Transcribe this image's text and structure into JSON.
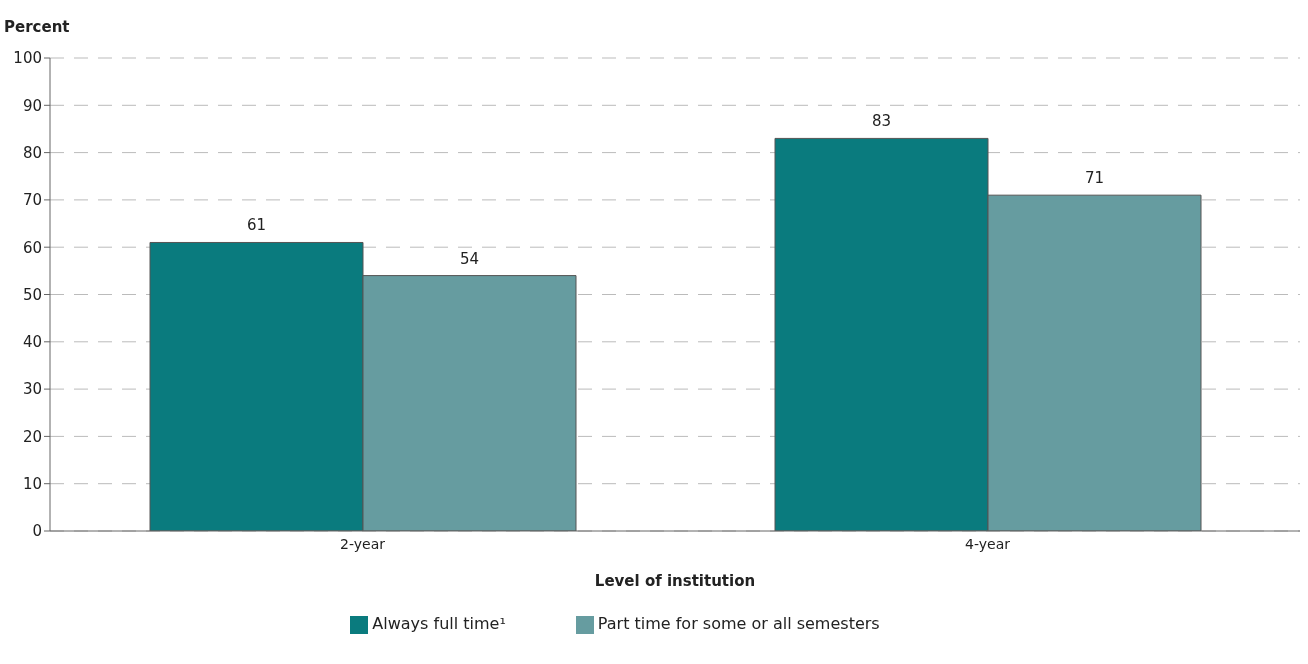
{
  "chart_data": {
    "type": "bar",
    "ylabel": "Percent",
    "xlabel": "Level of institution",
    "categories": [
      "2-year",
      "4-year"
    ],
    "series": [
      {
        "name": "Always full time¹",
        "color": "#0a7b7e",
        "values": [
          61,
          83
        ]
      },
      {
        "name": "Part time for some or all semesters",
        "color": "#669ca0",
        "values": [
          54,
          71
        ]
      }
    ],
    "ylim": [
      0,
      100
    ],
    "yticks": [
      0,
      10,
      20,
      30,
      40,
      50,
      60,
      70,
      80,
      90,
      100
    ],
    "grid": "y",
    "legend": "bottom",
    "data_labels": true
  }
}
